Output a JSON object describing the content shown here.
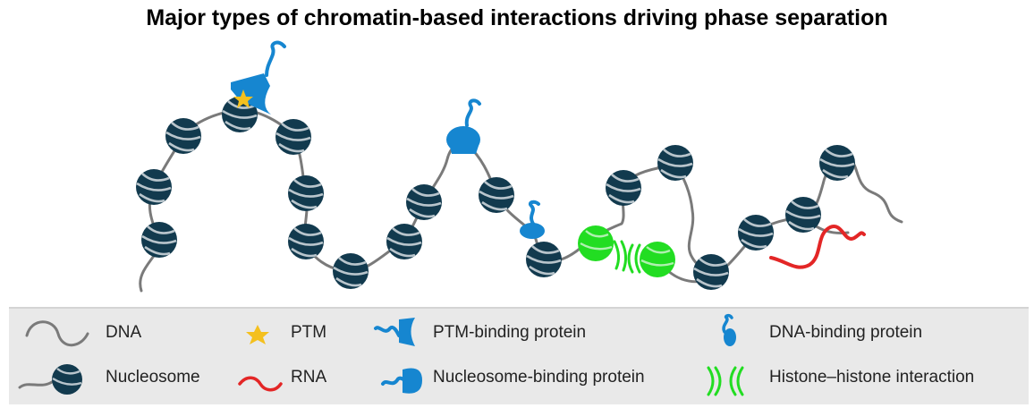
{
  "title": "Major types of chromatin-based interactions driving phase separation",
  "colors": {
    "dna": "#7a7a7a",
    "nucleosome": "#123a4e",
    "nucleosome_band": "#b9c5cc",
    "ptm": "#f4c01e",
    "rna": "#e32626",
    "protein": "#1686d0",
    "histone_interaction": "#22dd22",
    "legend_bg": "#e9e9e9"
  },
  "legend": {
    "dna_label": "DNA",
    "nucleosome_label": "Nucleosome",
    "ptm_label": "PTM",
    "rna_label": "RNA",
    "ptm_binding_label": "PTM-binding protein",
    "nucleosome_binding_label": "Nucleosome-binding protein",
    "dna_binding_label": "DNA-binding protein",
    "histone_histone_label": "Histone–histone interaction"
  }
}
